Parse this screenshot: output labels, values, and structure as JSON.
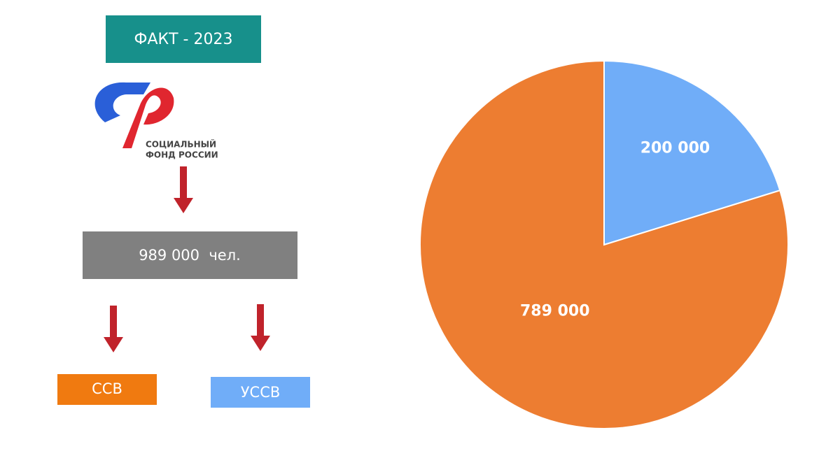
{
  "header": {
    "title": "ФАКТ - 2023",
    "logo_line1": "СОЦИАЛЬНЫЙ",
    "logo_line2": "ФОНД РОССИИ",
    "total": "989 000  чел."
  },
  "chart_data": {
    "type": "pie",
    "categories": [
      "УССВ",
      "ССВ"
    ],
    "values": [
      200000,
      789000
    ],
    "value_labels": [
      "200 000",
      "789 000"
    ],
    "colors": [
      "#70adf8",
      "#ed7d31"
    ]
  }
}
